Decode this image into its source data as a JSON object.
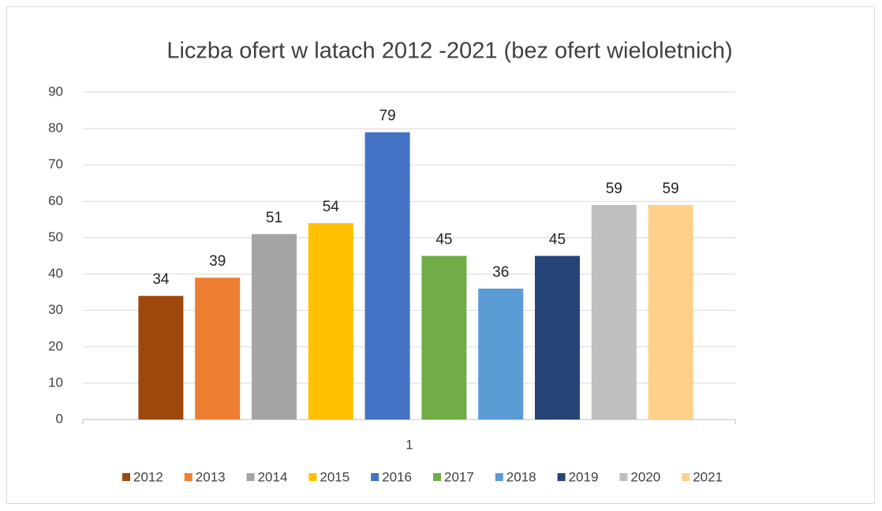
{
  "chart_data": {
    "type": "bar",
    "title": "Liczba ofert w latach 2012 -2021 (bez ofert wieloletnich)",
    "categories": [
      "1"
    ],
    "series": [
      {
        "name": "2012",
        "color": "#9E480E",
        "values": [
          34
        ]
      },
      {
        "name": "2013",
        "color": "#ED7D31",
        "values": [
          39
        ]
      },
      {
        "name": "2014",
        "color": "#A5A5A5",
        "values": [
          51
        ]
      },
      {
        "name": "2015",
        "color": "#FFC000",
        "values": [
          54
        ]
      },
      {
        "name": "2016",
        "color": "#4472C4",
        "values": [
          79
        ]
      },
      {
        "name": "2017",
        "color": "#70AD47",
        "values": [
          45
        ]
      },
      {
        "name": "2018",
        "color": "#5B9BD5",
        "values": [
          36
        ]
      },
      {
        "name": "2019",
        "color": "#264478",
        "values": [
          45
        ]
      },
      {
        "name": "2020",
        "color": "#BFBFBF",
        "values": [
          59
        ]
      },
      {
        "name": "2021",
        "color": "#FFD08A",
        "values": [
          59
        ]
      }
    ],
    "ylim": [
      0,
      90
    ],
    "yticks": [
      0,
      10,
      20,
      30,
      40,
      50,
      60,
      70,
      80,
      90
    ],
    "grid": true,
    "legend": "bottom",
    "data_labels": true
  }
}
